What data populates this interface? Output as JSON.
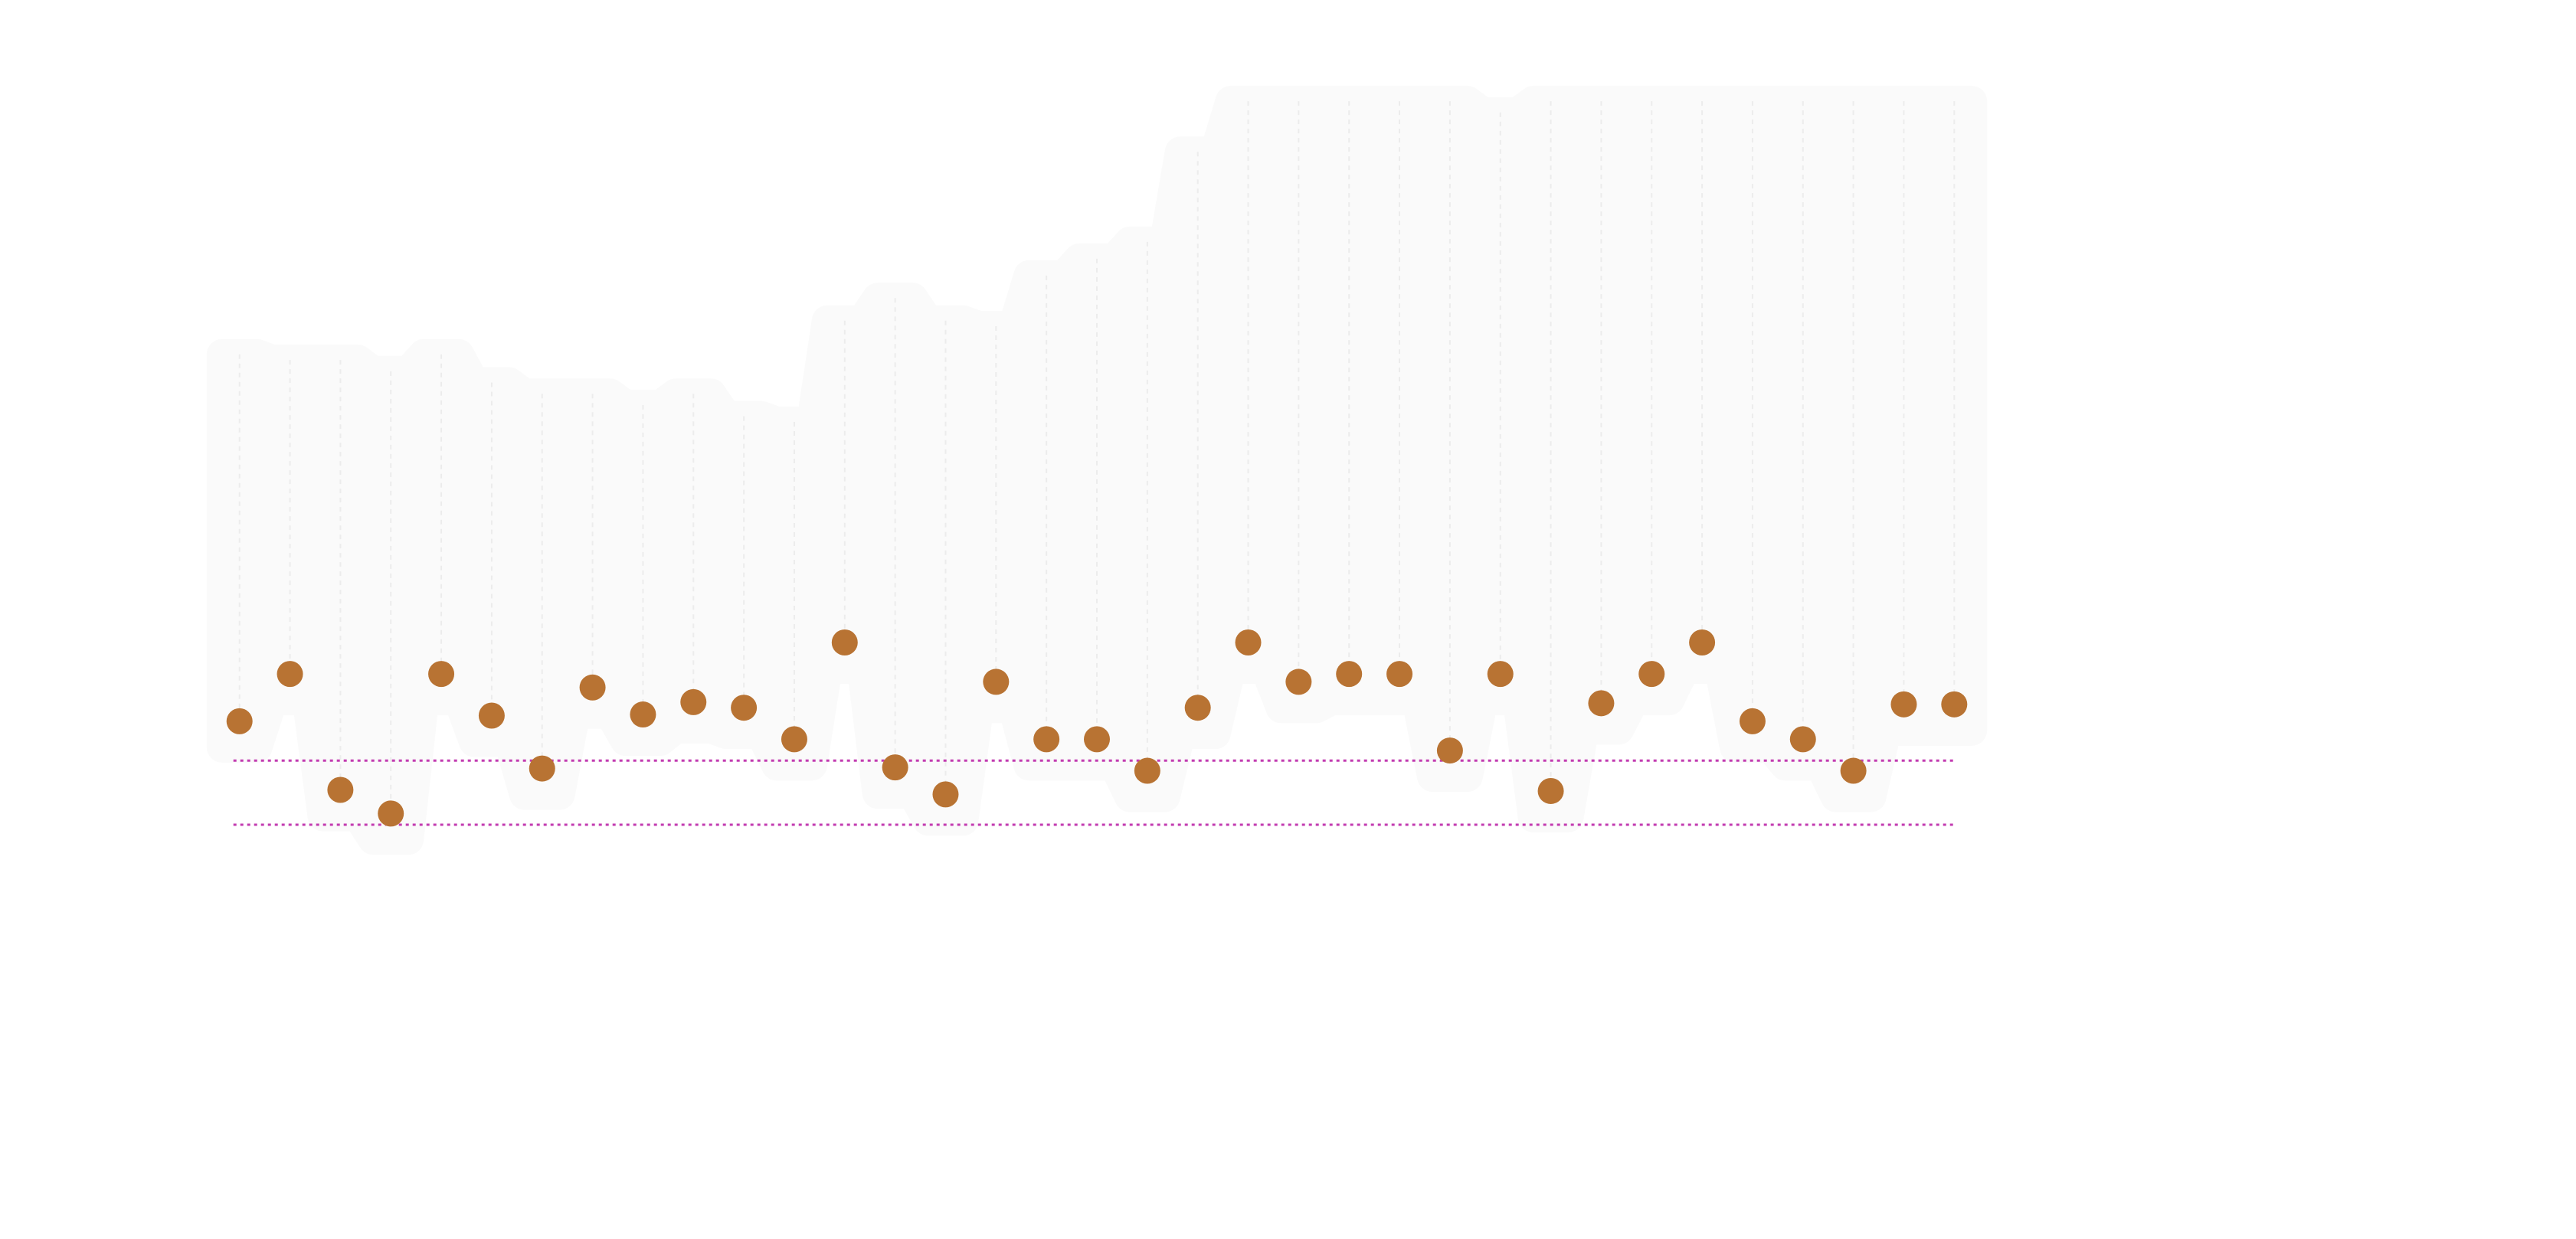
{
  "chart_data": {
    "type": "scatter",
    "title": "",
    "xlabel": "",
    "ylabel": "",
    "grid": true,
    "legend": "none",
    "x": [
      1,
      2,
      3,
      4,
      5,
      6,
      7,
      8,
      9,
      10,
      11,
      12,
      13,
      14,
      15,
      16,
      17,
      18,
      19,
      20,
      21,
      22,
      23,
      24,
      25,
      26,
      27,
      28,
      29,
      30,
      31,
      32,
      33,
      34,
      35
    ],
    "xlim": [
      0.23,
      35.77
    ],
    "series": [
      {
        "name": "",
        "values": [
          32.4,
          36.6,
          26.3,
          24.2,
          36.6,
          32.9,
          28.2,
          35.4,
          33.0,
          34.1,
          33.6,
          30.8,
          39.4,
          28.3,
          25.9,
          35.9,
          30.8,
          30.8,
          28.0,
          33.6,
          39.4,
          35.9,
          36.6,
          36.6,
          29.8,
          36.6,
          26.2,
          34.0,
          36.6,
          39.4,
          32.4,
          30.8,
          28.0,
          33.9,
          33.9
        ]
      },
      {
        "name": "",
        "values": [
          65,
          64.5,
          64.5,
          63.5,
          65,
          62.5,
          61.5,
          61.5,
          60.5,
          61.5,
          59.5,
          59,
          68,
          70,
          68,
          67.5,
          72,
          73.5,
          75,
          83,
          87.5,
          87.5,
          87.5,
          87.5,
          87.5,
          86.5,
          87.5,
          87.5,
          87.5,
          87.5,
          87.5,
          87.5,
          87.5,
          87.5,
          87.5
        ]
      }
    ],
    "reference_lines": [
      {
        "y": 28.9
      },
      {
        "y": 23.2
      }
    ],
    "ylim": [
      0,
      92
    ],
    "colors": {
      "points": "#b87333",
      "reference": "#c23bb0",
      "band": "#fafafa",
      "grid": "#ececec"
    }
  }
}
